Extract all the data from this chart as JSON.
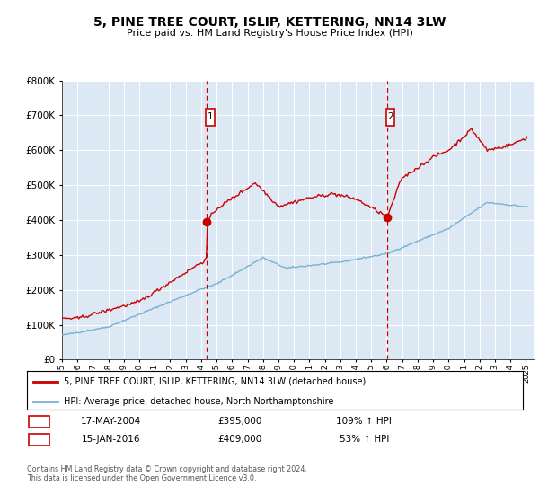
{
  "title": "5, PINE TREE COURT, ISLIP, KETTERING, NN14 3LW",
  "subtitle": "Price paid vs. HM Land Registry's House Price Index (HPI)",
  "legend_label_red": "5, PINE TREE COURT, ISLIP, KETTERING, NN14 3LW (detached house)",
  "legend_label_blue": "HPI: Average price, detached house, North Northamptonshire",
  "sale1_date": 2004.38,
  "sale1_price": 395000,
  "sale1_label": "17-MAY-2004",
  "sale1_pct": "109% ↑ HPI",
  "sale2_date": 2016.04,
  "sale2_price": 409000,
  "sale2_label": "15-JAN-2016",
  "sale2_pct": "53% ↑ HPI",
  "footer": "Contains HM Land Registry data © Crown copyright and database right 2024.\nThis data is licensed under the Open Government Licence v3.0.",
  "bg_color": "#dce9f5",
  "red_color": "#cc0000",
  "blue_color": "#7ab0d4",
  "ylim": [
    0,
    800000
  ],
  "xlim_start": 1995,
  "xlim_end": 2025.5
}
